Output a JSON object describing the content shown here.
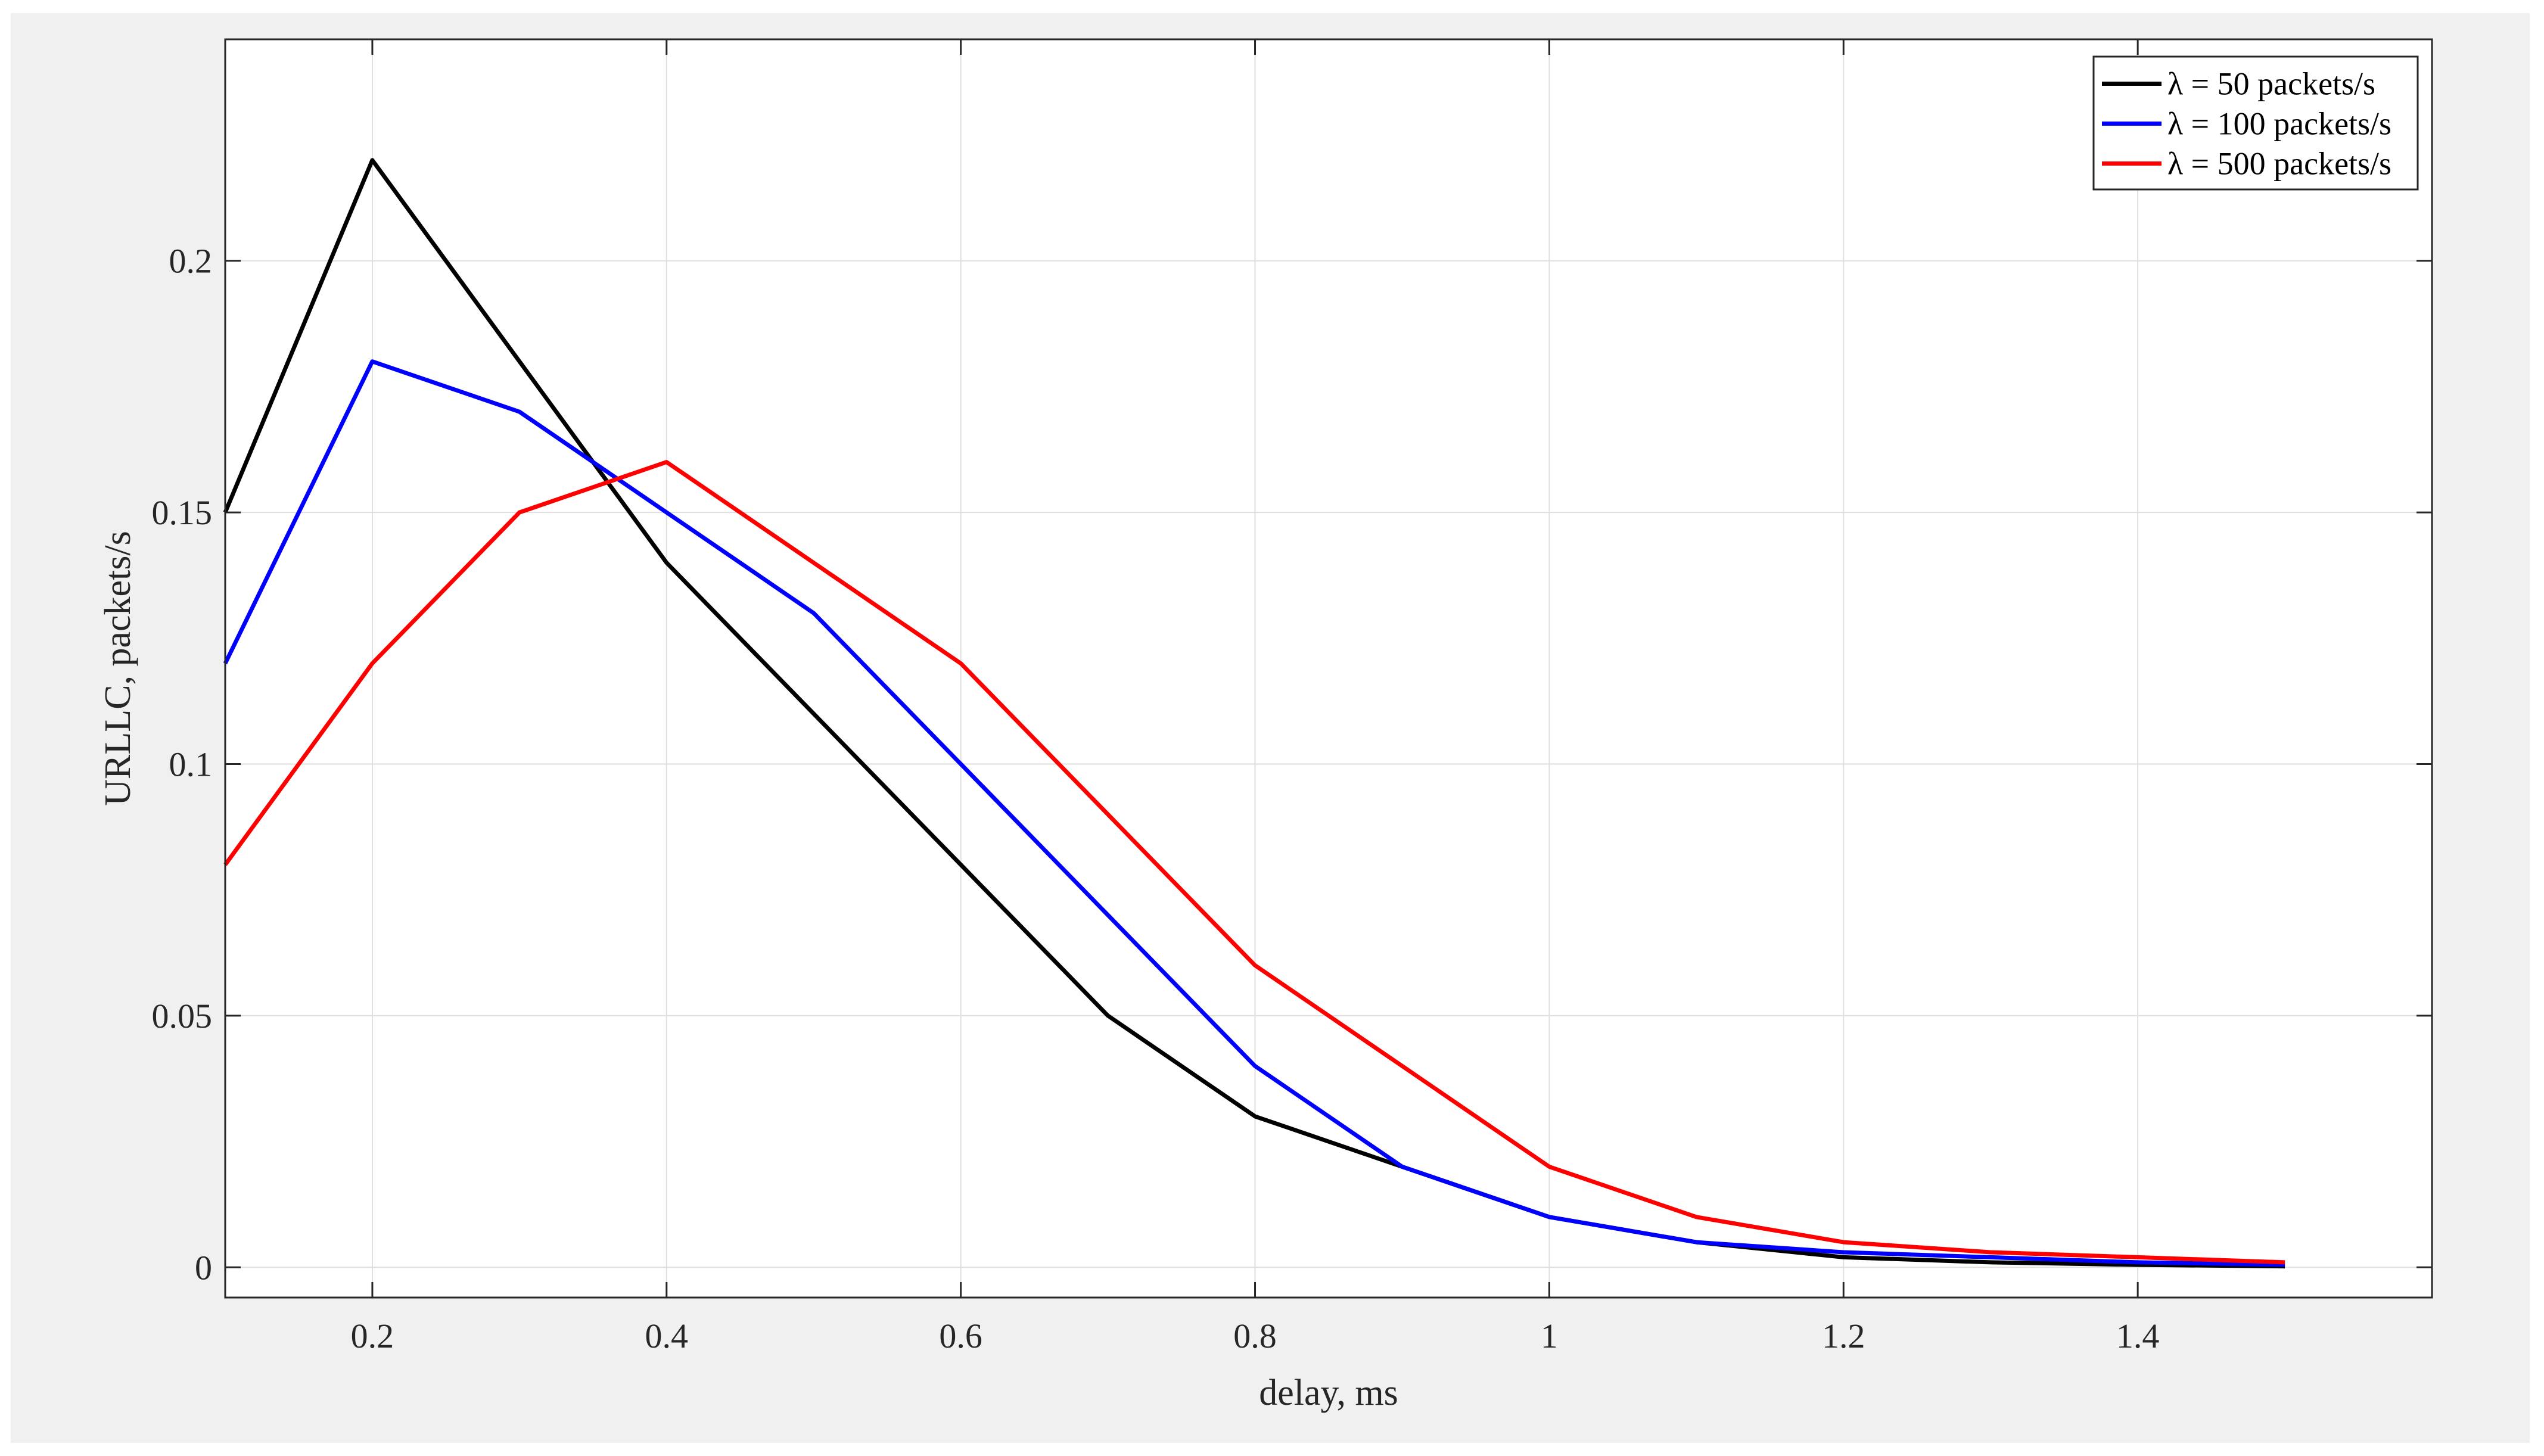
{
  "chart_data": {
    "type": "line",
    "title": "",
    "xlabel": "delay, ms",
    "ylabel": "URLLC, packets/s",
    "xlim": [
      0.1,
      1.6
    ],
    "ylim": [
      -0.006,
      0.244
    ],
    "x_ticks": [
      0.2,
      0.4,
      0.6,
      0.8,
      1.0,
      1.2,
      1.4
    ],
    "x_tick_labels": [
      "0.2",
      "0.4",
      "0.6",
      "0.8",
      "1",
      "1.2",
      "1.4"
    ],
    "y_ticks": [
      0,
      0.05,
      0.1,
      0.15,
      0.2
    ],
    "y_tick_labels": [
      "0",
      "0.05",
      "0.1",
      "0.15",
      "0.2"
    ],
    "grid": true,
    "legend_position": "top-right",
    "x": [
      0.1,
      0.2,
      0.3,
      0.4,
      0.5,
      0.6,
      0.7,
      0.8,
      0.9,
      1.0,
      1.1,
      1.2,
      1.3,
      1.4,
      1.5
    ],
    "series": [
      {
        "name": "λ = 50 packets/s",
        "color": "#000000",
        "values": [
          0.15,
          0.22,
          0.18,
          0.14,
          0.11,
          0.08,
          0.05,
          0.03,
          0.02,
          0.01,
          0.005,
          0.002,
          0.001,
          0.0005,
          0.0002
        ]
      },
      {
        "name": "λ = 100 packets/s",
        "color": "#0000ff",
        "values": [
          0.12,
          0.18,
          0.17,
          0.15,
          0.13,
          0.1,
          0.07,
          0.04,
          0.02,
          0.01,
          0.005,
          0.003,
          0.002,
          0.001,
          0.0005
        ]
      },
      {
        "name": "λ = 500 packets/s",
        "color": "#ff0000",
        "values": [
          0.08,
          0.12,
          0.15,
          0.16,
          0.14,
          0.12,
          0.09,
          0.06,
          0.04,
          0.02,
          0.01,
          0.005,
          0.003,
          0.002,
          0.001
        ]
      }
    ]
  }
}
